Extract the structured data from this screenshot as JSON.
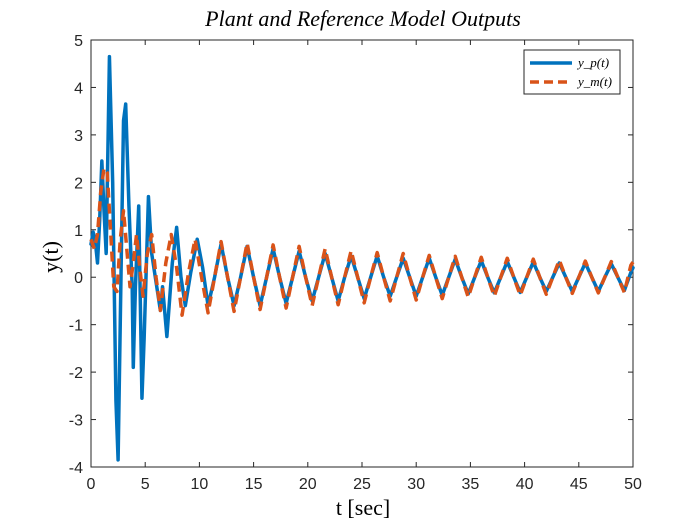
{
  "chart_data": {
    "type": "line",
    "title": "Plant and Reference Model Outputs",
    "xlabel": "t [sec]",
    "ylabel": "y(t)",
    "xlim": [
      0,
      50
    ],
    "ylim": [
      -4,
      5
    ],
    "xticks": [
      0,
      5,
      10,
      15,
      20,
      25,
      30,
      35,
      40,
      45,
      50
    ],
    "yticks": [
      -4,
      -3,
      -2,
      -1,
      0,
      1,
      2,
      3,
      4,
      5
    ],
    "grid": false,
    "legend": "top-right",
    "series": [
      {
        "name": "y_p(t)",
        "color": "#0072BD",
        "style": "solid",
        "points": [
          [
            0,
            0.7
          ],
          [
            0.2,
            0.95
          ],
          [
            0.4,
            0.75
          ],
          [
            0.6,
            0.3
          ],
          [
            0.8,
            1.2
          ],
          [
            1.0,
            2.45
          ],
          [
            1.2,
            1.4
          ],
          [
            1.4,
            0.5
          ],
          [
            1.7,
            4.65
          ],
          [
            2.0,
            2.0
          ],
          [
            2.3,
            -2.6
          ],
          [
            2.5,
            -3.85
          ],
          [
            2.8,
            0.5
          ],
          [
            3.0,
            3.3
          ],
          [
            3.2,
            3.65
          ],
          [
            3.5,
            1.5
          ],
          [
            3.8,
            -0.2
          ],
          [
            3.9,
            -1.9
          ],
          [
            4.1,
            -0.2
          ],
          [
            4.4,
            1.5
          ],
          [
            4.7,
            -2.55
          ],
          [
            4.9,
            -1.3
          ],
          [
            5.3,
            1.7
          ],
          [
            5.6,
            0.5
          ],
          [
            6.0,
            -0.1
          ],
          [
            6.4,
            -0.7
          ],
          [
            6.6,
            -0.2
          ],
          [
            7.0,
            -1.25
          ],
          [
            7.5,
            0.3
          ],
          [
            7.9,
            1.05
          ],
          [
            8.3,
            0.0
          ],
          [
            8.7,
            -0.6
          ],
          [
            9.2,
            0.1
          ],
          [
            9.8,
            0.8
          ],
          [
            10.3,
            0.2
          ],
          [
            10.8,
            -0.6
          ],
          [
            11.4,
            0.0
          ],
          [
            12.0,
            0.7
          ],
          [
            12.6,
            0.0
          ],
          [
            13.2,
            -0.6
          ],
          [
            13.8,
            0.0
          ],
          [
            14.4,
            0.65
          ],
          [
            15.0,
            0.0
          ],
          [
            15.6,
            -0.6
          ],
          [
            16.2,
            0.0
          ],
          [
            16.8,
            0.6
          ],
          [
            17.4,
            0.0
          ],
          [
            18.0,
            -0.55
          ],
          [
            18.6,
            0.0
          ],
          [
            19.2,
            0.55
          ],
          [
            19.8,
            0.0
          ],
          [
            20.4,
            -0.5
          ],
          [
            21.0,
            0.0
          ],
          [
            21.6,
            0.5
          ],
          [
            22.2,
            0.0
          ],
          [
            22.8,
            -0.5
          ],
          [
            23.4,
            0.0
          ],
          [
            24.0,
            0.45
          ],
          [
            24.6,
            0.0
          ],
          [
            25.2,
            -0.45
          ],
          [
            25.8,
            0.0
          ],
          [
            26.4,
            0.45
          ],
          [
            27.0,
            0.0
          ],
          [
            27.6,
            -0.4
          ],
          [
            28.2,
            0.0
          ],
          [
            28.8,
            0.4
          ],
          [
            29.4,
            0.0
          ],
          [
            30.0,
            -0.4
          ],
          [
            30.6,
            0.0
          ],
          [
            31.2,
            0.4
          ],
          [
            31.8,
            0.0
          ],
          [
            32.4,
            -0.38
          ],
          [
            33.0,
            0.0
          ],
          [
            33.6,
            0.38
          ],
          [
            34.2,
            0.0
          ],
          [
            34.8,
            -0.35
          ],
          [
            35.4,
            0.0
          ],
          [
            36.0,
            0.35
          ],
          [
            36.6,
            0.0
          ],
          [
            37.2,
            -0.33
          ],
          [
            37.8,
            0.0
          ],
          [
            38.4,
            0.33
          ],
          [
            39.0,
            0.0
          ],
          [
            39.6,
            -0.32
          ],
          [
            40.2,
            0.0
          ],
          [
            40.8,
            0.32
          ],
          [
            41.4,
            0.0
          ],
          [
            42.0,
            -0.3
          ],
          [
            42.6,
            0.0
          ],
          [
            43.2,
            0.3
          ],
          [
            43.8,
            0.0
          ],
          [
            44.4,
            -0.3
          ],
          [
            45.0,
            0.0
          ],
          [
            45.6,
            0.3
          ],
          [
            46.2,
            0.0
          ],
          [
            46.8,
            -0.3
          ],
          [
            47.4,
            0.0
          ],
          [
            48.0,
            0.28
          ],
          [
            48.6,
            0.0
          ],
          [
            49.2,
            -0.28
          ],
          [
            49.8,
            0.1
          ],
          [
            50.0,
            0.2
          ]
        ]
      },
      {
        "name": "y_m(t)",
        "color": "#D95319",
        "style": "dashed",
        "points": [
          [
            0,
            0.8
          ],
          [
            0.3,
            0.6
          ],
          [
            0.6,
            0.9
          ],
          [
            0.9,
            1.8
          ],
          [
            1.2,
            2.3
          ],
          [
            1.5,
            2.2
          ],
          [
            1.8,
            1.0
          ],
          [
            2.1,
            -0.2
          ],
          [
            2.4,
            -0.3
          ],
          [
            2.7,
            0.8
          ],
          [
            3.0,
            1.4
          ],
          [
            3.3,
            0.6
          ],
          [
            3.6,
            -0.2
          ],
          [
            3.9,
            0.3
          ],
          [
            4.2,
            0.9
          ],
          [
            4.5,
            0.2
          ],
          [
            4.8,
            -0.4
          ],
          [
            5.2,
            0.5
          ],
          [
            5.6,
            0.9
          ],
          [
            6.0,
            0.0
          ],
          [
            6.4,
            -0.7
          ],
          [
            6.9,
            0.3
          ],
          [
            7.4,
            0.9
          ],
          [
            7.9,
            0.2
          ],
          [
            8.4,
            -0.8
          ],
          [
            9.0,
            0.1
          ],
          [
            9.6,
            0.8
          ],
          [
            10.2,
            0.0
          ],
          [
            10.8,
            -0.75
          ],
          [
            11.4,
            0.0
          ],
          [
            12.0,
            0.75
          ],
          [
            12.6,
            0.0
          ],
          [
            13.2,
            -0.72
          ],
          [
            13.8,
            0.0
          ],
          [
            14.4,
            0.72
          ],
          [
            15.0,
            0.0
          ],
          [
            15.6,
            -0.68
          ],
          [
            16.2,
            0.0
          ],
          [
            16.8,
            0.68
          ],
          [
            17.4,
            0.0
          ],
          [
            18.0,
            -0.65
          ],
          [
            18.6,
            0.0
          ],
          [
            19.2,
            0.65
          ],
          [
            19.8,
            0.0
          ],
          [
            20.4,
            -0.6
          ],
          [
            21.0,
            0.0
          ],
          [
            21.6,
            0.6
          ],
          [
            22.2,
            0.0
          ],
          [
            22.8,
            -0.58
          ],
          [
            23.4,
            0.0
          ],
          [
            24.0,
            0.56
          ],
          [
            24.6,
            0.0
          ],
          [
            25.2,
            -0.54
          ],
          [
            25.8,
            0.0
          ],
          [
            26.4,
            0.52
          ],
          [
            27.0,
            0.0
          ],
          [
            27.6,
            -0.5
          ],
          [
            28.2,
            0.0
          ],
          [
            28.8,
            0.5
          ],
          [
            29.4,
            0.0
          ],
          [
            30.0,
            -0.48
          ],
          [
            30.6,
            0.0
          ],
          [
            31.2,
            0.46
          ],
          [
            31.8,
            0.0
          ],
          [
            32.4,
            -0.45
          ],
          [
            33.0,
            0.0
          ],
          [
            33.6,
            0.44
          ],
          [
            34.2,
            0.0
          ],
          [
            34.8,
            -0.42
          ],
          [
            35.4,
            0.0
          ],
          [
            36.0,
            0.42
          ],
          [
            36.6,
            0.0
          ],
          [
            37.2,
            -0.4
          ],
          [
            37.8,
            0.0
          ],
          [
            38.4,
            0.4
          ],
          [
            39.0,
            0.0
          ],
          [
            39.6,
            -0.38
          ],
          [
            40.2,
            0.0
          ],
          [
            40.8,
            0.38
          ],
          [
            41.4,
            0.0
          ],
          [
            42.0,
            -0.36
          ],
          [
            42.6,
            0.0
          ],
          [
            43.2,
            0.36
          ],
          [
            43.8,
            0.0
          ],
          [
            44.4,
            -0.34
          ],
          [
            45.0,
            0.0
          ],
          [
            45.6,
            0.34
          ],
          [
            46.2,
            0.0
          ],
          [
            46.8,
            -0.33
          ],
          [
            47.4,
            0.0
          ],
          [
            48.0,
            0.33
          ],
          [
            48.6,
            0.0
          ],
          [
            49.2,
            -0.32
          ],
          [
            49.8,
            0.25
          ],
          [
            50.0,
            0.32
          ]
        ]
      }
    ],
    "legend_entries": [
      "y_p(t)",
      "y_m(t)"
    ]
  }
}
